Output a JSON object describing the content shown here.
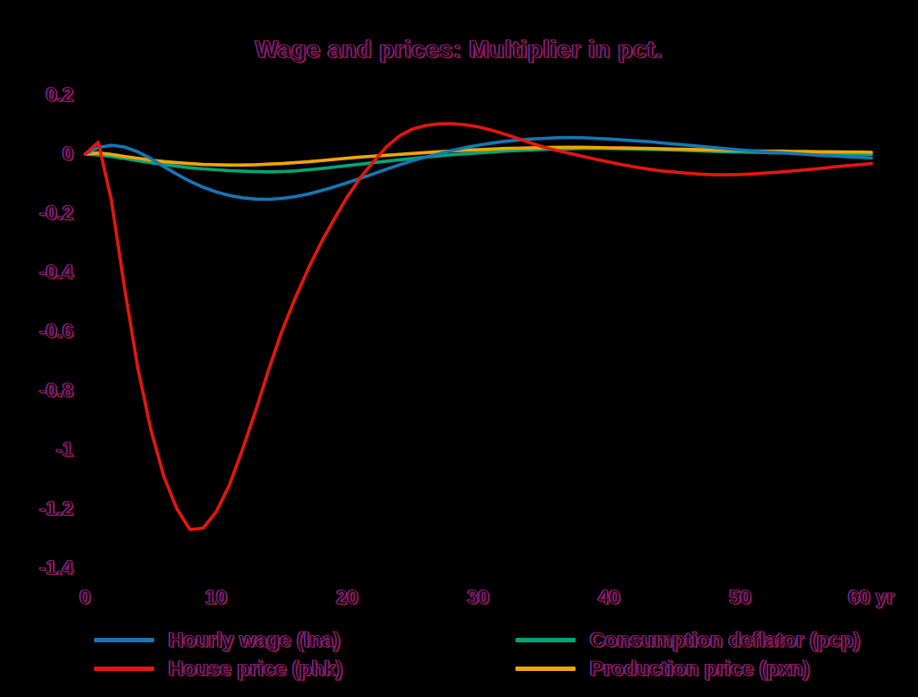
{
  "chart_data": {
    "type": "line",
    "title": "Wage and prices: Multiplier in pct.",
    "xlabel": "",
    "ylabel": "",
    "x_unit_label": "yr",
    "xlim": [
      0,
      60
    ],
    "ylim": [
      -1.4,
      0.2
    ],
    "grid": false,
    "background_color": "#000000",
    "legend_position": "bottom-two-columns",
    "x_ticks": [
      0,
      10,
      20,
      30,
      40,
      50,
      60
    ],
    "x_tick_labels": [
      "0",
      "10",
      "20",
      "30",
      "40",
      "50",
      "60 yr"
    ],
    "y_ticks": [
      0.2,
      0,
      -0.2,
      -0.4,
      -0.6,
      -0.8,
      -1,
      -1.2,
      -1.4
    ],
    "y_tick_labels": [
      "0.2",
      "0",
      "-0.2",
      "-0.4",
      "-0.6",
      "-0.8",
      "-1",
      "-1.2",
      "-1.4"
    ],
    "x_start": 0,
    "x_step": 1,
    "series": [
      {
        "name": "Hourly wage (lna)",
        "color": "#1576b6",
        "values": [
          0,
          0.022,
          0.03,
          0.024,
          0.008,
          -0.015,
          -0.042,
          -0.068,
          -0.092,
          -0.112,
          -0.128,
          -0.14,
          -0.148,
          -0.152,
          -0.153,
          -0.15,
          -0.144,
          -0.135,
          -0.124,
          -0.111,
          -0.097,
          -0.082,
          -0.067,
          -0.051,
          -0.036,
          -0.022,
          -0.01,
          0.001,
          0.012,
          0.022,
          0.03,
          0.037,
          0.043,
          0.047,
          0.051,
          0.053,
          0.055,
          0.056,
          0.055,
          0.053,
          0.051,
          0.048,
          0.045,
          0.042,
          0.038,
          0.034,
          0.03,
          0.026,
          0.022,
          0.018,
          0.014,
          0.011,
          0.008,
          0.005,
          0.002,
          -0.001,
          -0.004,
          -0.006,
          -0.009,
          -0.011,
          -0.013
        ]
      },
      {
        "name": "House price (phk)",
        "color": "#e3170d",
        "values": [
          0,
          0.04,
          -0.155,
          -0.45,
          -0.72,
          -0.93,
          -1.09,
          -1.2,
          -1.27,
          -1.265,
          -1.21,
          -1.12,
          -1.0,
          -0.87,
          -0.73,
          -0.6,
          -0.49,
          -0.39,
          -0.3,
          -0.22,
          -0.145,
          -0.08,
          -0.025,
          0.025,
          0.062,
          0.085,
          0.097,
          0.102,
          0.103,
          0.099,
          0.092,
          0.081,
          0.068,
          0.053,
          0.038,
          0.024,
          0.012,
          0.002,
          -0.008,
          -0.018,
          -0.027,
          -0.036,
          -0.044,
          -0.051,
          -0.057,
          -0.061,
          -0.065,
          -0.068,
          -0.07,
          -0.07,
          -0.069,
          -0.067,
          -0.064,
          -0.061,
          -0.057,
          -0.053,
          -0.049,
          -0.044,
          -0.04,
          -0.036,
          -0.032
        ]
      },
      {
        "name": "Consumption deflator (pcp)",
        "color": "#00a578",
        "values": [
          0,
          -0.003,
          -0.008,
          -0.015,
          -0.022,
          -0.029,
          -0.035,
          -0.041,
          -0.046,
          -0.05,
          -0.053,
          -0.056,
          -0.058,
          -0.059,
          -0.06,
          -0.059,
          -0.057,
          -0.053,
          -0.049,
          -0.044,
          -0.039,
          -0.034,
          -0.029,
          -0.024,
          -0.019,
          -0.015,
          -0.01,
          -0.006,
          -0.002,
          0.001,
          0.004,
          0.007,
          0.01,
          0.012,
          0.014,
          0.016,
          0.017,
          0.018,
          0.019,
          0.019,
          0.019,
          0.018,
          0.017,
          0.016,
          0.015,
          0.014,
          0.012,
          0.011,
          0.009,
          0.008,
          0.007,
          0.006,
          0.005,
          0.004,
          0.003,
          0.002,
          0.001,
          0.001,
          0.0,
          0.0,
          -0.001
        ]
      },
      {
        "name": "Production price (pxn)",
        "color": "#f0a50a",
        "values": [
          0,
          0.004,
          -0.001,
          -0.008,
          -0.014,
          -0.02,
          -0.025,
          -0.029,
          -0.032,
          -0.035,
          -0.036,
          -0.037,
          -0.037,
          -0.036,
          -0.034,
          -0.032,
          -0.029,
          -0.026,
          -0.022,
          -0.018,
          -0.014,
          -0.01,
          -0.007,
          -0.004,
          -0.001,
          0.002,
          0.005,
          0.008,
          0.011,
          0.013,
          0.015,
          0.017,
          0.019,
          0.02,
          0.021,
          0.022,
          0.023,
          0.023,
          0.023,
          0.022,
          0.021,
          0.021,
          0.02,
          0.019,
          0.018,
          0.017,
          0.016,
          0.015,
          0.014,
          0.013,
          0.012,
          0.011,
          0.01,
          0.01,
          0.009,
          0.009,
          0.008,
          0.008,
          0.007,
          0.007,
          0.006
        ]
      }
    ]
  }
}
